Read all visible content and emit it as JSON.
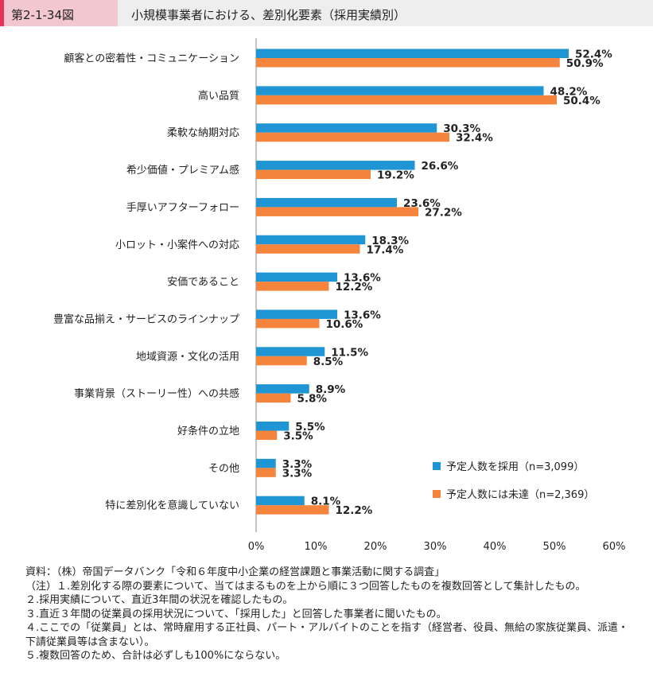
{
  "header": {
    "figure_number": "第2-1-34図",
    "title": "小規模事業者における、差別化要素（採用実績別）"
  },
  "colors": {
    "series1": "#1f96d3",
    "series2": "#f5843c"
  },
  "chart_data": {
    "type": "bar",
    "orientation": "horizontal",
    "categories": [
      "顧客との密着性・コミュニケーション",
      "高い品質",
      "柔軟な納期対応",
      "希少価値・プレミアム感",
      "手厚いアフターフォロー",
      "小ロット・小案件への対応",
      "安価であること",
      "豊富な品揃え・サービスのラインナップ",
      "地域資源・文化の活用",
      "事業背景（ストーリー性）への共感",
      "好条件の立地",
      "その他",
      "特に差別化を意識していない"
    ],
    "series": [
      {
        "name": "予定人数を採用（n=3,099）",
        "values": [
          52.4,
          48.2,
          30.3,
          26.6,
          23.6,
          18.3,
          13.6,
          13.6,
          11.5,
          8.9,
          5.5,
          3.3,
          8.1
        ],
        "labels": [
          "52.4%",
          "48.2%",
          "30.3%",
          "26.6%",
          "23.6%",
          "18.3%",
          "13.6%",
          "13.6%",
          "11.5%",
          "8.9%",
          "5.5%",
          "3.3%",
          "8.1%"
        ]
      },
      {
        "name": "予定人数には未達（n=2,369）",
        "values": [
          50.9,
          50.4,
          32.4,
          19.2,
          27.2,
          17.4,
          12.2,
          10.6,
          8.5,
          5.8,
          3.5,
          3.3,
          12.2
        ],
        "labels": [
          "50.9%",
          "50.4%",
          "32.4%",
          "19.2%",
          "27.2%",
          "17.4%",
          "12.2%",
          "10.6%",
          "8.5%",
          "5.8%",
          "3.5%",
          "3.3%",
          "12.2%"
        ]
      }
    ],
    "xlim": [
      0,
      60
    ],
    "xticks": [
      0,
      10,
      20,
      30,
      40,
      50,
      60
    ],
    "xtick_labels": [
      "0%",
      "10%",
      "20%",
      "30%",
      "40%",
      "50%",
      "60%"
    ],
    "legend_position": "bottom-right"
  },
  "notes": [
    "資料：（株）帝国データバンク「令和６年度中小企業の経営課題と事業活動に関する調査」",
    "（注）１.差別化する際の要素について、当てはまるものを上から順に３つ回答したものを複数回答として集計したもの。",
    "２.採用実績について、直近3年間の状況を確認したもの。",
    "３.直近３年間の従業員の採用状況について、「採用した」と回答した事業者に聞いたもの。",
    "４.ここでの「従業員」とは、常時雇用する正社員、パート・アルバイトのことを指す（経営者、役員、無給の家族従業員、派遣・下請従業員等は含まない）。",
    "５.複数回答のため、合計は必ずしも100%にならない。"
  ]
}
